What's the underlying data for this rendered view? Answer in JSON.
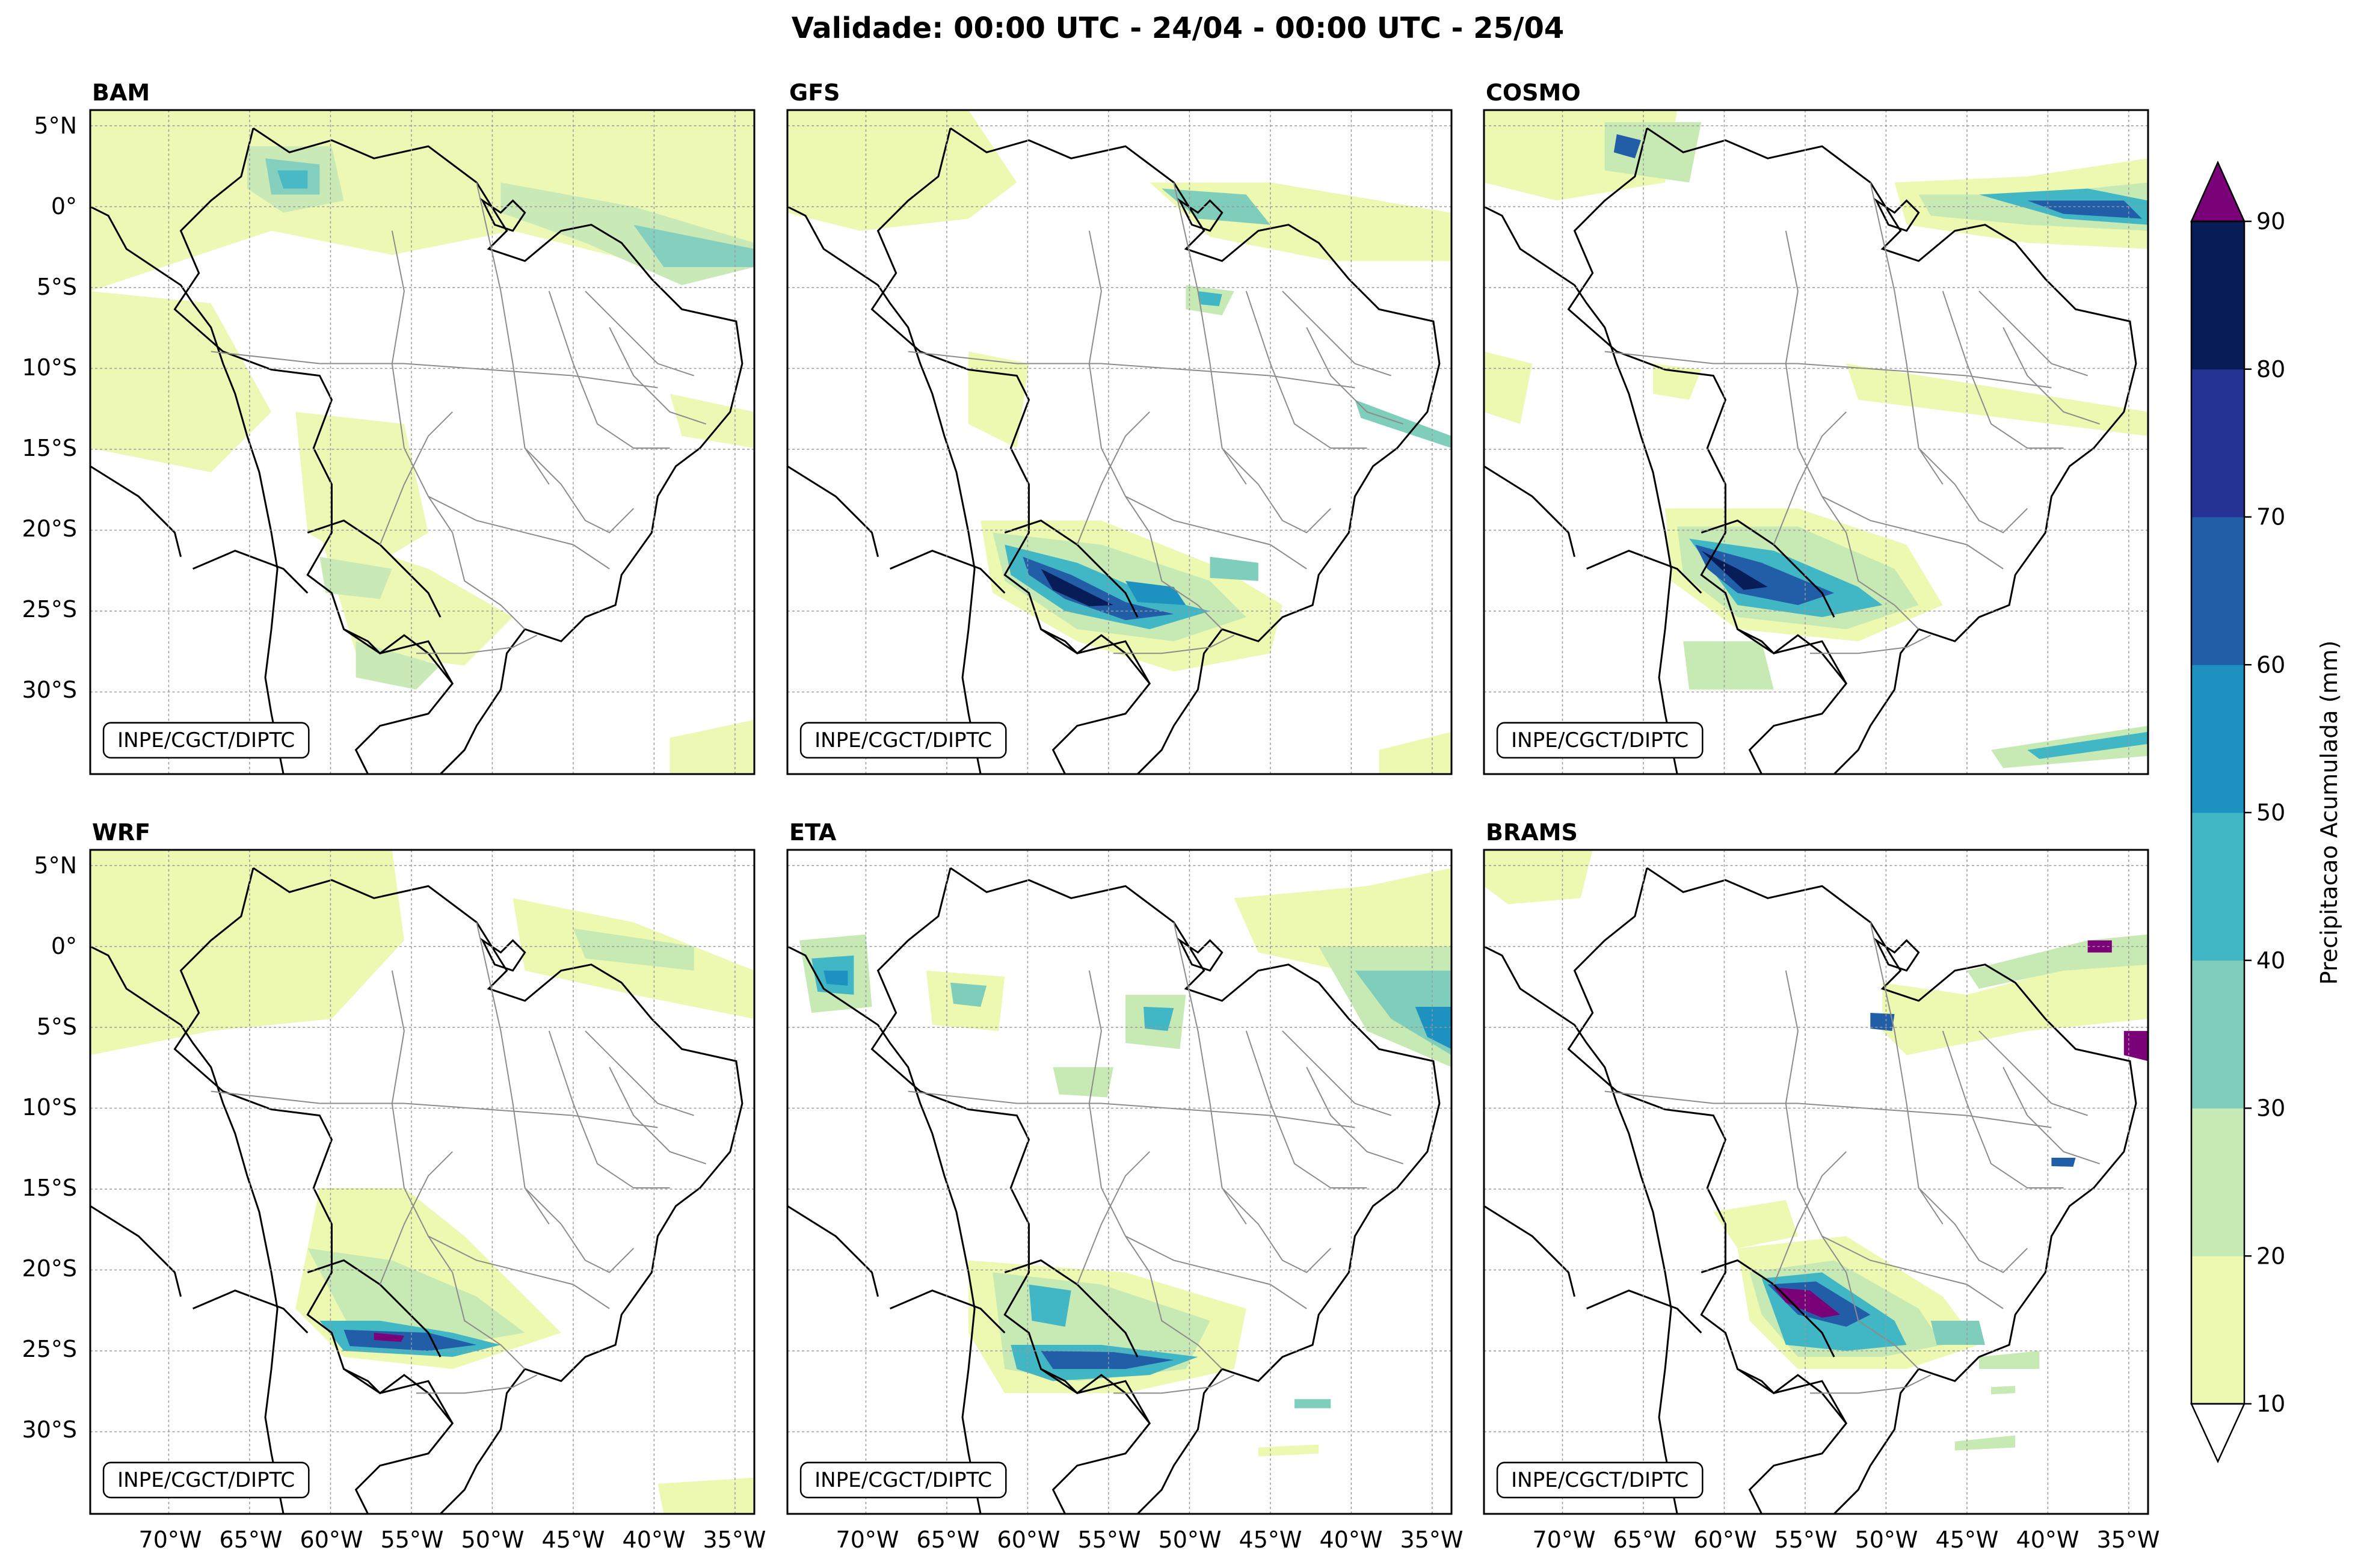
{
  "title": "Validade: 00:00 UTC - 24/04 - 00:00 UTC - 25/04",
  "credit": "INPE/CGCT/DIPTC",
  "panels": [
    {
      "name": "BAM"
    },
    {
      "name": "GFS"
    },
    {
      "name": "COSMO"
    },
    {
      "name": "WRF"
    },
    {
      "name": "ETA"
    },
    {
      "name": "BRAMS"
    }
  ],
  "axes": {
    "lat_labels": [
      "5°N",
      "0°",
      "5°S",
      "10°S",
      "15°S",
      "20°S",
      "25°S",
      "30°S"
    ],
    "lon_labels": [
      "70°W",
      "65°W",
      "60°W",
      "55°W",
      "50°W",
      "45°W",
      "40°W",
      "35°W"
    ]
  },
  "colorbar": {
    "label": "Precipitacao Acumulada (mm)",
    "ticks": [
      "10",
      "20",
      "30",
      "40",
      "50",
      "60",
      "70",
      "80",
      "90"
    ],
    "colors": [
      "#edf8b1",
      "#c7e9b4",
      "#7fcdbb",
      "#41b6c4",
      "#1d91c0",
      "#225ea8",
      "#253494",
      "#081d58"
    ],
    "over_color": "#7a0177",
    "under_color": "#ffffff"
  },
  "colors": {
    "country_border": "#000000",
    "state_border": "#8c8c8c",
    "grid": "#9a9a9a"
  }
}
